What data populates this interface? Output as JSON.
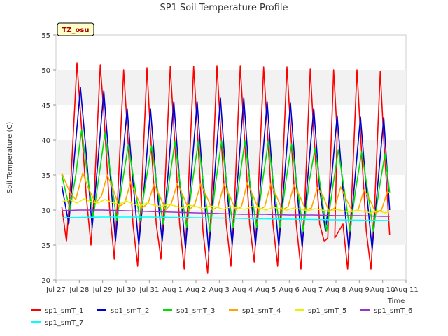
{
  "chart_data": {
    "type": "line",
    "title": "SP1 Soil Temperature Profile",
    "xlabel": "Time",
    "ylabel": "Soil Temperature (C)",
    "badge": "TZ_osu",
    "ylim": [
      20,
      55
    ],
    "yticks": [
      20,
      25,
      30,
      35,
      40,
      45,
      50,
      55
    ],
    "xlim": [
      0,
      15
    ],
    "xticks": [
      0,
      1,
      2,
      3,
      4,
      5,
      6,
      7,
      8,
      9,
      10,
      11,
      12,
      13,
      14,
      15
    ],
    "xtick_labels": [
      "Jul 27",
      "Jul 28",
      "Jul 29",
      "Jul 30",
      "Jul 31",
      "Aug 1",
      "Aug 2",
      "Aug 3",
      "Aug 4",
      "Aug 5",
      "Aug 6",
      "Aug 7",
      "Aug 8",
      "Aug 9",
      "Aug 10",
      "Aug 11"
    ],
    "x_units": "days since Jul 27",
    "grid": "horizontal bands",
    "legend_position": "bottom",
    "series": [
      {
        "name": "sp1_smT_1",
        "color": "#ff0000",
        "x": [
          0.25,
          0.45,
          0.65,
          0.9,
          1.05,
          1.3,
          1.5,
          1.65,
          1.9,
          2.05,
          2.3,
          2.5,
          2.65,
          2.9,
          3.05,
          3.3,
          3.5,
          3.65,
          3.9,
          4.05,
          4.3,
          4.5,
          4.65,
          4.9,
          5.05,
          5.3,
          5.5,
          5.65,
          5.9,
          6.05,
          6.3,
          6.5,
          6.65,
          6.9,
          7.05,
          7.3,
          7.5,
          7.65,
          7.9,
          8.05,
          8.3,
          8.5,
          8.65,
          8.9,
          9.05,
          9.3,
          9.5,
          9.65,
          9.9,
          10.05,
          10.3,
          10.5,
          10.65,
          10.9,
          11.05,
          11.3,
          11.5,
          11.65,
          11.9,
          12.05,
          11.95,
          12.3,
          12.5,
          12.65,
          12.9,
          13.05,
          13.3,
          13.5,
          13.65,
          13.9,
          14.05,
          14.3
        ],
        "y": [
          30.5,
          25.5,
          35,
          51,
          44,
          32,
          25,
          33,
          50.7,
          44,
          30,
          23,
          32,
          50,
          42,
          28,
          22,
          31,
          50.3,
          41,
          28,
          23,
          32,
          50.5,
          42,
          28,
          21.5,
          31,
          50.5,
          42,
          27,
          21,
          30,
          50.6,
          42,
          28,
          22,
          31,
          50.6,
          42,
          28,
          22.5,
          31,
          50.4,
          42,
          28,
          22,
          31,
          50.4,
          42,
          28,
          21.5,
          30,
          50.2,
          41,
          28,
          25.5,
          26,
          50,
          41,
          26,
          28,
          21.5,
          30,
          50,
          41,
          27,
          21.5,
          30,
          49.8,
          40,
          26.5
        ]
      },
      {
        "name": "sp1_smT_2",
        "color": "#0000cc",
        "x": [
          0.25,
          0.55,
          0.8,
          1.05,
          1.3,
          1.55,
          1.8,
          2.05,
          2.3,
          2.55,
          2.8,
          3.05,
          3.3,
          3.55,
          3.8,
          4.05,
          4.3,
          4.55,
          4.8,
          5.05,
          5.3,
          5.55,
          5.8,
          6.05,
          6.3,
          6.55,
          6.8,
          7.05,
          7.3,
          7.55,
          7.8,
          8.05,
          8.3,
          8.55,
          8.8,
          9.05,
          9.3,
          9.55,
          9.8,
          10.05,
          10.3,
          10.55,
          10.8,
          11.05,
          11.3,
          11.55,
          11.8,
          12.05,
          12.3,
          12.55,
          12.8,
          13.05,
          13.3,
          13.55,
          13.8,
          14.05,
          14.3
        ],
        "y": [
          33.5,
          28,
          38,
          47.5,
          38,
          27.5,
          37,
          47,
          36,
          25.5,
          35,
          44.5,
          34,
          25,
          34,
          44.5,
          34,
          25.5,
          35,
          45.5,
          34,
          24.5,
          35,
          45.5,
          34,
          24,
          35,
          46,
          34,
          25,
          35,
          46,
          34,
          25,
          35,
          45.5,
          34,
          24.8,
          35,
          45.3,
          34,
          24.7,
          35,
          44.5,
          33,
          27,
          34,
          43.5,
          33,
          24.3,
          34,
          43.3,
          33,
          24.3,
          34,
          43.2,
          30
        ]
      },
      {
        "name": "sp1_smT_3",
        "color": "#00dd00",
        "x": [
          0.25,
          0.6,
          0.85,
          1.1,
          1.35,
          1.6,
          1.85,
          2.1,
          2.35,
          2.6,
          2.85,
          3.1,
          3.35,
          3.6,
          3.85,
          4.1,
          4.35,
          4.6,
          4.85,
          5.1,
          5.35,
          5.6,
          5.85,
          6.1,
          6.35,
          6.6,
          6.85,
          7.1,
          7.35,
          7.6,
          7.85,
          8.1,
          8.35,
          8.6,
          8.85,
          9.1,
          9.35,
          9.6,
          9.85,
          10.1,
          10.35,
          10.6,
          10.85,
          11.1,
          11.35,
          11.6,
          11.85,
          12.1,
          12.35,
          12.6,
          12.85,
          13.1,
          13.35,
          13.6,
          13.85,
          14.1,
          14.3
        ],
        "y": [
          35,
          30,
          35,
          41.5,
          35,
          29,
          35,
          41,
          35,
          28.5,
          34,
          39.3,
          34,
          28.5,
          34,
          39.2,
          33,
          28,
          34,
          39.8,
          33,
          27.5,
          34,
          39.8,
          33,
          27,
          34,
          39.9,
          33,
          27.5,
          34,
          39.9,
          33,
          27.5,
          34,
          39.8,
          33,
          27.5,
          34,
          39.5,
          33,
          27,
          34,
          38.8,
          33,
          27,
          33,
          38.6,
          33,
          27,
          33,
          38.3,
          33,
          27,
          33,
          38,
          32.5
        ]
      },
      {
        "name": "sp1_smT_4",
        "color": "#ffa500",
        "x": [
          0.25,
          0.6,
          0.85,
          1.15,
          1.4,
          1.7,
          1.95,
          2.2,
          2.45,
          2.7,
          2.95,
          3.2,
          3.45,
          3.7,
          3.95,
          4.2,
          4.45,
          4.7,
          4.95,
          5.2,
          5.45,
          5.7,
          5.95,
          6.2,
          6.45,
          6.7,
          6.95,
          7.2,
          7.45,
          7.7,
          7.95,
          8.2,
          8.45,
          8.7,
          8.95,
          9.2,
          9.45,
          9.7,
          9.95,
          10.2,
          10.45,
          10.7,
          10.95,
          11.2,
          11.45,
          11.7,
          11.95,
          12.2,
          12.45,
          12.7,
          12.95,
          13.2,
          13.45,
          13.7,
          13.95,
          14.2,
          14.3
        ],
        "y": [
          35.3,
          32.5,
          31.5,
          35.3,
          33,
          31,
          32,
          35,
          33,
          30.5,
          31,
          34,
          32,
          30.3,
          31,
          33.7,
          32,
          30,
          31,
          33.8,
          32,
          30,
          30.8,
          33.7,
          32,
          30,
          30.5,
          33.7,
          32,
          30,
          30.5,
          33.9,
          32,
          30,
          30.5,
          33.7,
          32,
          30,
          30.5,
          33.6,
          32,
          30,
          30.3,
          33.2,
          32,
          29.8,
          30.3,
          33.3,
          31.5,
          29.8,
          30,
          32.9,
          31.5,
          29.6,
          30,
          32.6,
          32.5
        ]
      },
      {
        "name": "sp1_smT_5",
        "color": "#eeee00",
        "x": [
          0.25,
          0.6,
          0.9,
          1.2,
          1.5,
          1.8,
          2.1,
          2.4,
          2.7,
          3.0,
          3.3,
          3.6,
          3.9,
          4.2,
          4.5,
          4.8,
          5.1,
          5.4,
          5.7,
          6.0,
          6.3,
          6.6,
          6.9,
          7.2,
          7.5,
          7.8,
          8.1,
          8.4,
          8.7,
          9.0,
          9.3,
          9.6,
          9.9,
          10.2,
          10.5,
          10.8,
          11.1,
          11.4,
          11.7,
          12.0,
          12.3,
          12.6,
          12.9,
          13.2,
          13.5,
          13.8,
          14.1,
          14.3
        ],
        "y": [
          31.2,
          31.5,
          31,
          31.6,
          31.2,
          31,
          31.5,
          31.1,
          30.8,
          31.3,
          30.9,
          30.6,
          31,
          30.7,
          30.5,
          30.8,
          30.6,
          30.3,
          30.7,
          30.5,
          30.2,
          30.6,
          30.4,
          30.1,
          30.5,
          30.3,
          30.1,
          30.5,
          30.3,
          30,
          30.4,
          30.2,
          30,
          30.3,
          30.1,
          29.9,
          30.2,
          30,
          29.8,
          30.1,
          29.9,
          29.7,
          30,
          29.8,
          29.6,
          29.9,
          29.6,
          29.8
        ]
      },
      {
        "name": "sp1_smT_6",
        "color": "#9933cc",
        "x": [
          0.25,
          1.0,
          2.0,
          3.0,
          4.0,
          5.0,
          6.0,
          7.0,
          8.0,
          9.0,
          10.0,
          11.0,
          12.0,
          13.0,
          14.0,
          14.3
        ],
        "y": [
          29.9,
          30.0,
          30.0,
          29.9,
          29.8,
          29.7,
          29.6,
          29.5,
          29.4,
          29.4,
          29.3,
          29.3,
          29.2,
          29.2,
          29.1,
          29.1
        ]
      },
      {
        "name": "sp1_smT_7",
        "color": "#00ffff",
        "x": [
          0.25,
          2.0,
          4.0,
          6.0,
          8.0,
          10.0,
          12.0,
          14.3
        ],
        "y": [
          28.9,
          29.0,
          29.0,
          28.9,
          28.8,
          28.7,
          28.6,
          28.5
        ]
      }
    ]
  }
}
